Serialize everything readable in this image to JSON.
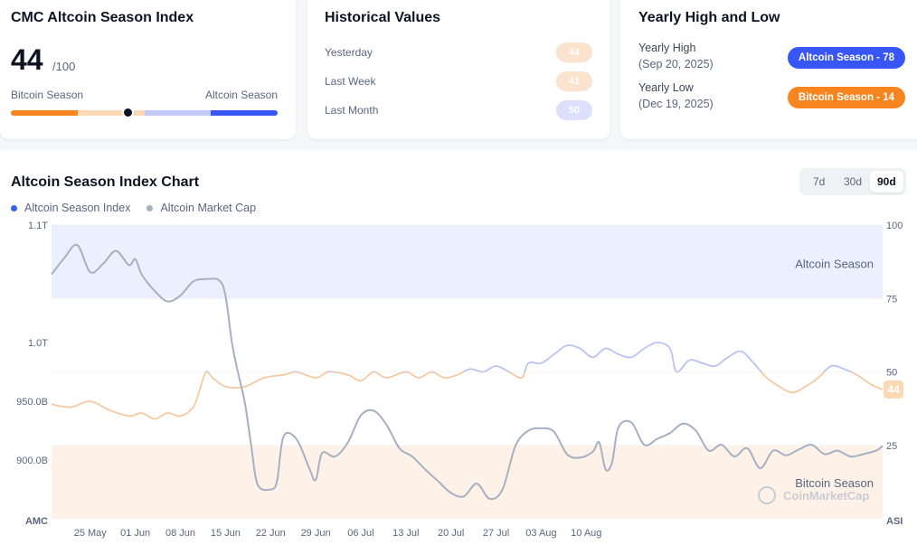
{
  "index_card": {
    "title": "CMC Altcoin Season Index",
    "value": "44",
    "max": "/100",
    "left_label": "Bitcoin Season",
    "right_label": "Altcoin Season",
    "gauge_value": 44
  },
  "historical": {
    "title": "Historical Values",
    "rows": [
      {
        "label": "Yesterday",
        "value": "44",
        "color": "#fbe3cd"
      },
      {
        "label": "Last Week",
        "value": "41",
        "color": "#fbe3cd"
      },
      {
        "label": "Last Month",
        "value": "50",
        "color": "#dce0fb"
      }
    ]
  },
  "yearly": {
    "title": "Yearly High and Low",
    "high": {
      "label": "Yearly High",
      "date": "(Sep 20, 2025)",
      "badge": "Altcoin Season - 78",
      "color": "#3756f5"
    },
    "low": {
      "label": "Yearly Low",
      "date": "(Dec 19, 2025)",
      "badge": "Bitcoin Season - 14",
      "color": "#f6851f"
    }
  },
  "chart_section": {
    "title": "Altcoin Season Index Chart",
    "ranges": [
      "7d",
      "30d",
      "90d"
    ],
    "active_range": "90d",
    "zone_top_label": "Altcoin Season",
    "zone_bottom_label": "Bitcoin Season",
    "watermark": "CoinMarketCap",
    "current_badge": "44"
  },
  "colors": {
    "altcoin": "#3861fb",
    "market_cap": "#a6b0c3",
    "bitcoin": "#f6851f",
    "index_line": "#f7c9a0",
    "index_line_high": "#b9c3f7"
  },
  "chart_data": {
    "type": "line",
    "legend_placement": "top-left",
    "grid": false,
    "x_ticks": [
      "25 May",
      "01 Jun",
      "08 Jun",
      "15 Jun",
      "22 Jun",
      "29 Jun",
      "06 Jul",
      "13 Jul",
      "20 Jul",
      "27 Jul",
      "03 Aug",
      "10 Aug"
    ],
    "x_range": [
      "19 May",
      "16 Aug"
    ],
    "left_axis": {
      "title": "AMC",
      "ticks": [
        "900.0B",
        "950.0B",
        "1.0T",
        "1.1T"
      ],
      "ylim": [
        850,
        1100
      ],
      "unit": "B"
    },
    "right_axis": {
      "title": "ASI",
      "ticks": [
        "25",
        "50",
        "75",
        "100"
      ],
      "ylim": [
        0,
        100
      ]
    },
    "zones": [
      {
        "label": "Altcoin Season",
        "from": 75,
        "to": 100
      },
      {
        "label": "Bitcoin Season",
        "from": 0,
        "to": 25
      }
    ],
    "series": [
      {
        "name": "Altcoin Season Index",
        "axis": "right",
        "points": [
          [
            0,
            39
          ],
          [
            3,
            38
          ],
          [
            6,
            40
          ],
          [
            9,
            37
          ],
          [
            12,
            35
          ],
          [
            14,
            36
          ],
          [
            16,
            34
          ],
          [
            18,
            36
          ],
          [
            20,
            35
          ],
          [
            22,
            38
          ],
          [
            23,
            44
          ],
          [
            24,
            50
          ],
          [
            25,
            48
          ],
          [
            27,
            45
          ],
          [
            30,
            45
          ],
          [
            33,
            48
          ],
          [
            36,
            49
          ],
          [
            38,
            50
          ],
          [
            41,
            48
          ],
          [
            43,
            50
          ],
          [
            46,
            49
          ],
          [
            48,
            47
          ],
          [
            50,
            50
          ],
          [
            52,
            48
          ],
          [
            55,
            50
          ],
          [
            57,
            48
          ],
          [
            59,
            50
          ],
          [
            61,
            48
          ],
          [
            63,
            49
          ],
          [
            65,
            51
          ],
          [
            67,
            50
          ],
          [
            69,
            52
          ],
          [
            71,
            50
          ],
          [
            73,
            48
          ],
          [
            74,
            53
          ],
          [
            76,
            53
          ],
          [
            78,
            56
          ],
          [
            80,
            59
          ],
          [
            82,
            58
          ],
          [
            84,
            55
          ],
          [
            86,
            58
          ],
          [
            88,
            56
          ],
          [
            90,
            55
          ],
          [
            92,
            58
          ],
          [
            94,
            60
          ],
          [
            96,
            58
          ],
          [
            97,
            50
          ],
          [
            99,
            54
          ],
          [
            101,
            53
          ],
          [
            103,
            52
          ],
          [
            105,
            55
          ],
          [
            107,
            57
          ],
          [
            109,
            53
          ],
          [
            111,
            48
          ],
          [
            113,
            45
          ],
          [
            115,
            43
          ],
          [
            117,
            45
          ],
          [
            119,
            48
          ],
          [
            121,
            52
          ],
          [
            123,
            51
          ],
          [
            125,
            49
          ],
          [
            127,
            46
          ],
          [
            129,
            44
          ]
        ]
      },
      {
        "name": "Altcoin Market Cap",
        "axis": "left",
        "unit": "B",
        "points": [
          [
            0,
            1058
          ],
          [
            2,
            1072
          ],
          [
            4,
            1083
          ],
          [
            6,
            1060
          ],
          [
            8,
            1067
          ],
          [
            10,
            1078
          ],
          [
            12,
            1066
          ],
          [
            13,
            1071
          ],
          [
            14,
            1058
          ],
          [
            16,
            1044
          ],
          [
            18,
            1035
          ],
          [
            20,
            1040
          ],
          [
            22,
            1052
          ],
          [
            24,
            1054
          ],
          [
            26,
            1053
          ],
          [
            27,
            1040
          ],
          [
            28,
            1000
          ],
          [
            29,
            973
          ],
          [
            30,
            949
          ],
          [
            31,
            912
          ],
          [
            32,
            879
          ],
          [
            34,
            875
          ],
          [
            35,
            882
          ],
          [
            36,
            920
          ],
          [
            38,
            918
          ],
          [
            40,
            893
          ],
          [
            41,
            883
          ],
          [
            42,
            906
          ],
          [
            44,
            903
          ],
          [
            46,
            915
          ],
          [
            48,
            938
          ],
          [
            50,
            942
          ],
          [
            52,
            930
          ],
          [
            54,
            910
          ],
          [
            56,
            903
          ],
          [
            58,
            892
          ],
          [
            60,
            882
          ],
          [
            62,
            872
          ],
          [
            64,
            869
          ],
          [
            66,
            880
          ],
          [
            68,
            867
          ],
          [
            70,
            875
          ],
          [
            72,
            912
          ],
          [
            74,
            925
          ],
          [
            76,
            927
          ],
          [
            78,
            924
          ],
          [
            80,
            905
          ],
          [
            82,
            902
          ],
          [
            84,
            907
          ],
          [
            85,
            915
          ],
          [
            86,
            892
          ],
          [
            87,
            898
          ],
          [
            88,
            928
          ],
          [
            90,
            932
          ],
          [
            92,
            913
          ],
          [
            94,
            918
          ],
          [
            96,
            923
          ],
          [
            98,
            931
          ],
          [
            100,
            925
          ],
          [
            102,
            908
          ],
          [
            104,
            913
          ],
          [
            106,
            903
          ],
          [
            108,
            910
          ],
          [
            110,
            893
          ],
          [
            112,
            908
          ],
          [
            114,
            904
          ],
          [
            116,
            909
          ],
          [
            118,
            913
          ],
          [
            120,
            905
          ],
          [
            122,
            908
          ],
          [
            124,
            903
          ],
          [
            126,
            905
          ],
          [
            128,
            908
          ],
          [
            129,
            912
          ]
        ]
      }
    ]
  }
}
